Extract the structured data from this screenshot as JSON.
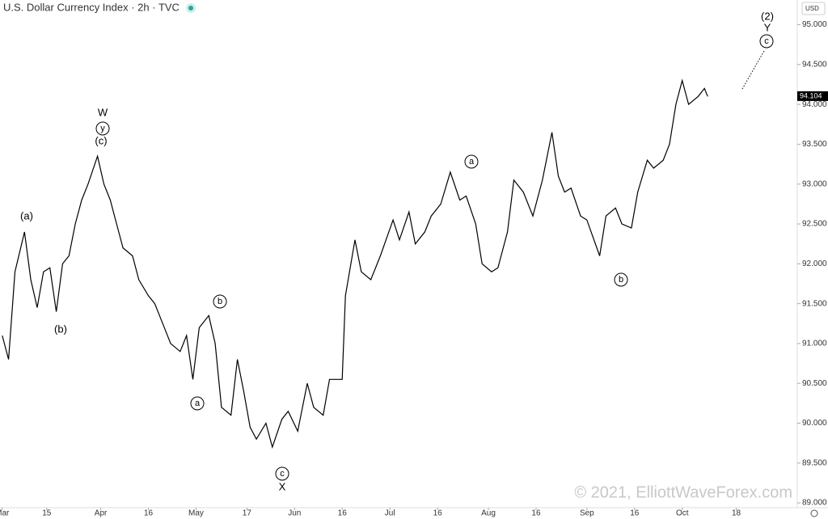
{
  "chart_data": {
    "type": "line",
    "title": "U.S. Dollar Currency Index · 2h · TVC",
    "currency": "USD",
    "watermark": "© 2021, ElliottWaveForex.com",
    "last_price": 94.104,
    "color": "#000000",
    "x": [
      0,
      2,
      4,
      7,
      9,
      11,
      13,
      15,
      17,
      19,
      21,
      23,
      25,
      27,
      30,
      32,
      34,
      36,
      38,
      41,
      43,
      46,
      48,
      51,
      53,
      56,
      58,
      60,
      62,
      65,
      67,
      69,
      72,
      74,
      76,
      78,
      80,
      83,
      85,
      88,
      90,
      93,
      96,
      98,
      101,
      103,
      107,
      108,
      111,
      113,
      116,
      119,
      123,
      125,
      128,
      130,
      133,
      135,
      138,
      141,
      144,
      146,
      149,
      151,
      154,
      156,
      159,
      161,
      164,
      167,
      170,
      173,
      175,
      177,
      179,
      182,
      184,
      188,
      190,
      193,
      195,
      198,
      200,
      203,
      205,
      208,
      210,
      212,
      214,
      216,
      219,
      221,
      222
    ],
    "values": [
      91.1,
      90.8,
      91.9,
      92.4,
      91.8,
      91.45,
      91.9,
      91.95,
      91.4,
      92.0,
      92.1,
      92.5,
      92.8,
      93.0,
      93.35,
      93.0,
      92.8,
      92.5,
      92.2,
      92.1,
      91.8,
      91.6,
      91.5,
      91.2,
      91.0,
      90.9,
      91.1,
      90.55,
      91.2,
      91.35,
      91.0,
      90.2,
      90.1,
      90.8,
      90.4,
      89.95,
      89.8,
      90.0,
      89.7,
      90.05,
      90.15,
      89.9,
      90.5,
      90.2,
      90.1,
      90.55,
      90.55,
      91.6,
      92.3,
      91.9,
      91.8,
      92.1,
      92.55,
      92.3,
      92.65,
      92.25,
      92.4,
      92.6,
      92.75,
      93.15,
      92.8,
      92.85,
      92.5,
      92.0,
      91.9,
      91.95,
      92.4,
      93.05,
      92.9,
      92.6,
      93.05,
      93.65,
      93.1,
      92.9,
      92.95,
      92.6,
      92.55,
      92.1,
      92.6,
      92.7,
      92.5,
      92.45,
      92.9,
      93.3,
      93.2,
      93.3,
      93.5,
      94.0,
      94.3,
      94.0,
      94.1,
      94.2,
      94.1
    ],
    "xlim": [
      -0.7,
      250.2
    ],
    "xticks": [
      {
        "value": 0,
        "label": "Mar"
      },
      {
        "value": 14,
        "label": "15"
      },
      {
        "value": 31,
        "label": "Apr"
      },
      {
        "value": 46,
        "label": "16"
      },
      {
        "value": 61,
        "label": "May"
      },
      {
        "value": 77,
        "label": "17"
      },
      {
        "value": 92,
        "label": "Jun"
      },
      {
        "value": 107,
        "label": "16"
      },
      {
        "value": 122,
        "label": "Jul"
      },
      {
        "value": 137,
        "label": "16"
      },
      {
        "value": 153,
        "label": "Aug"
      },
      {
        "value": 168,
        "label": "16"
      },
      {
        "value": 184,
        "label": "Sep"
      },
      {
        "value": 199,
        "label": "16"
      },
      {
        "value": 214,
        "label": "Oct"
      },
      {
        "value": 231,
        "label": "18"
      }
    ],
    "ylim": [
      88.94,
      95.31
    ],
    "yticks": [
      {
        "value": 89,
        "label": "89.000"
      },
      {
        "value": 89.5,
        "label": "89.500"
      },
      {
        "value": 90,
        "label": "90.000"
      },
      {
        "value": 90.5,
        "label": "90.500"
      },
      {
        "value": 91,
        "label": "91.000"
      },
      {
        "value": 91.5,
        "label": "91.500"
      },
      {
        "value": 92,
        "label": "92.000"
      },
      {
        "value": 92.5,
        "label": "92.500"
      },
      {
        "value": 93,
        "label": "93.000"
      },
      {
        "value": 93.5,
        "label": "93.500"
      },
      {
        "value": 94,
        "label": "94.000"
      },
      {
        "value": 94.5,
        "label": "94.500"
      },
      {
        "value": 95,
        "label": "95.000"
      }
    ],
    "annotations": [
      "W",
      "y",
      "(c)",
      "(a)",
      "(b)",
      "b",
      "a",
      "c",
      "X",
      "a",
      "b",
      "(2)",
      "Y",
      "c"
    ]
  }
}
